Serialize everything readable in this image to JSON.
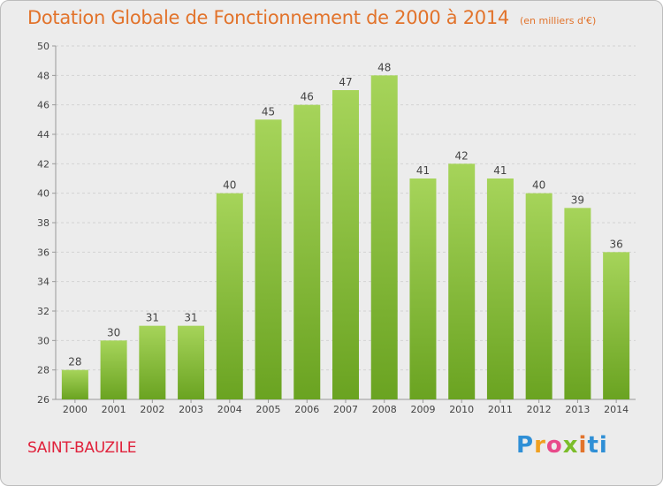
{
  "header": {
    "title": "Dotation Globale de Fonctionnement de 2000 à 2014",
    "unit": "(en milliers d'€)"
  },
  "footer": {
    "commune": "SAINT-BAUZILE",
    "brand": [
      "P",
      "r",
      "o",
      "x",
      "i",
      "t",
      "i"
    ]
  },
  "colors": {
    "bar_top": "#a6d45a",
    "bar_bottom": "#6aa321",
    "title": "#e2732b",
    "commune": "#e0203a"
  },
  "chart_data": {
    "type": "bar",
    "title": "Dotation Globale de Fonctionnement de 2000 à 2014",
    "categories": [
      "2000",
      "2001",
      "2002",
      "2003",
      "2004",
      "2005",
      "2006",
      "2007",
      "2008",
      "2009",
      "2010",
      "2011",
      "2012",
      "2013",
      "2014"
    ],
    "values": [
      28,
      30,
      31,
      31,
      40,
      45,
      46,
      47,
      48,
      41,
      42,
      41,
      40,
      39,
      36
    ],
    "ylim": [
      26,
      50
    ],
    "yticks": [
      26,
      28,
      30,
      32,
      34,
      36,
      38,
      40,
      42,
      44,
      46,
      48,
      50
    ],
    "grid": true
  }
}
